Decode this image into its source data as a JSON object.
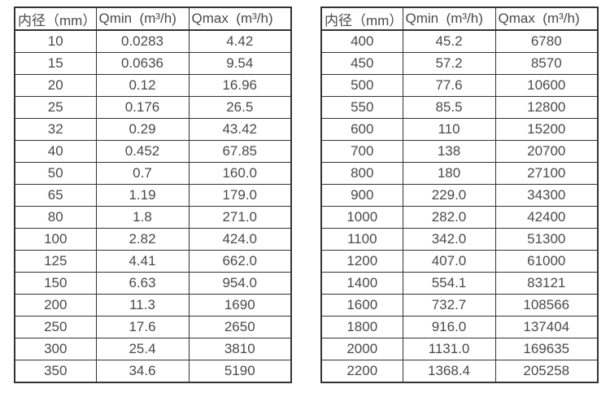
{
  "page": {
    "background_color": "#ffffff",
    "border_color": "#333333",
    "text_color": "#4a4a4a"
  },
  "tables": [
    {
      "id": "flow-table-small-diameters",
      "headers": [
        "内径（mm）",
        "Qmin  (m³/h)",
        "Qmax  (m³/h)"
      ],
      "rows": [
        [
          "10",
          "0.0283",
          "4.42"
        ],
        [
          "15",
          "0.0636",
          "9.54"
        ],
        [
          "20",
          "0.12",
          "16.96"
        ],
        [
          "25",
          "0.176",
          "26.5"
        ],
        [
          "32",
          "0.29",
          "43.42"
        ],
        [
          "40",
          "0.452",
          "67.85"
        ],
        [
          "50",
          "0.7",
          "160.0"
        ],
        [
          "65",
          "1.19",
          "179.0"
        ],
        [
          "80",
          "1.8",
          "271.0"
        ],
        [
          "100",
          "2.82",
          "424.0"
        ],
        [
          "125",
          "4.41",
          "662.0"
        ],
        [
          "150",
          "6.63",
          "954.0"
        ],
        [
          "200",
          "11.3",
          "1690"
        ],
        [
          "250",
          "17.6",
          "2650"
        ],
        [
          "300",
          "25.4",
          "3810"
        ],
        [
          "350",
          "34.6",
          "5190"
        ]
      ]
    },
    {
      "id": "flow-table-large-diameters",
      "headers": [
        "内径（mm）",
        "Qmin  (m³/h)",
        "Qmax  (m³/h)"
      ],
      "rows": [
        [
          "400",
          "45.2",
          "6780"
        ],
        [
          "450",
          "57.2",
          "8570"
        ],
        [
          "500",
          "77.6",
          "10600"
        ],
        [
          "550",
          "85.5",
          "12800"
        ],
        [
          "600",
          "110",
          "15200"
        ],
        [
          "700",
          "138",
          "20700"
        ],
        [
          "800",
          "180",
          "27100"
        ],
        [
          "900",
          "229.0",
          "34300"
        ],
        [
          "1000",
          "282.0",
          "42400"
        ],
        [
          "1100",
          "342.0",
          "51300"
        ],
        [
          "1200",
          "407.0",
          "61000"
        ],
        [
          "1400",
          "554.1",
          "83121"
        ],
        [
          "1600",
          "732.7",
          "108566"
        ],
        [
          "1800",
          "916.0",
          "137404"
        ],
        [
          "2000",
          "1131.0",
          "169635"
        ],
        [
          "2200",
          "1368.4",
          "205258"
        ]
      ]
    }
  ]
}
